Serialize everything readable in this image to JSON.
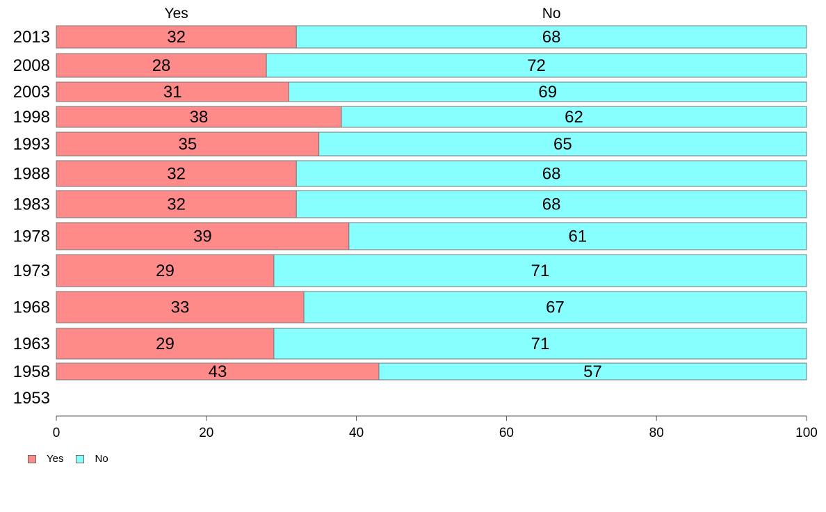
{
  "chart_data": {
    "type": "bar",
    "orientation": "horizontal",
    "stacked": true,
    "categories": [
      "2013",
      "2008",
      "2003",
      "1998",
      "1993",
      "1988",
      "1983",
      "1978",
      "1973",
      "1968",
      "1963",
      "1958",
      "1953"
    ],
    "series": [
      {
        "name": "Yes",
        "color": "#ff8a8a",
        "values": [
          32,
          28,
          31,
          38,
          35,
          32,
          32,
          39,
          29,
          33,
          29,
          43,
          null
        ]
      },
      {
        "name": "No",
        "color": "#88ffff",
        "values": [
          68,
          72,
          69,
          62,
          65,
          68,
          68,
          61,
          71,
          67,
          71,
          57,
          null
        ]
      }
    ],
    "xlim": [
      0,
      100
    ],
    "xticks": [
      0,
      20,
      40,
      60,
      80,
      100
    ],
    "legend_position": "bottom-left",
    "grid": false
  },
  "legend": {
    "items": [
      {
        "label": "Yes",
        "color": "#ff8a8a"
      },
      {
        "label": "No",
        "color": "#88ffff"
      }
    ]
  }
}
